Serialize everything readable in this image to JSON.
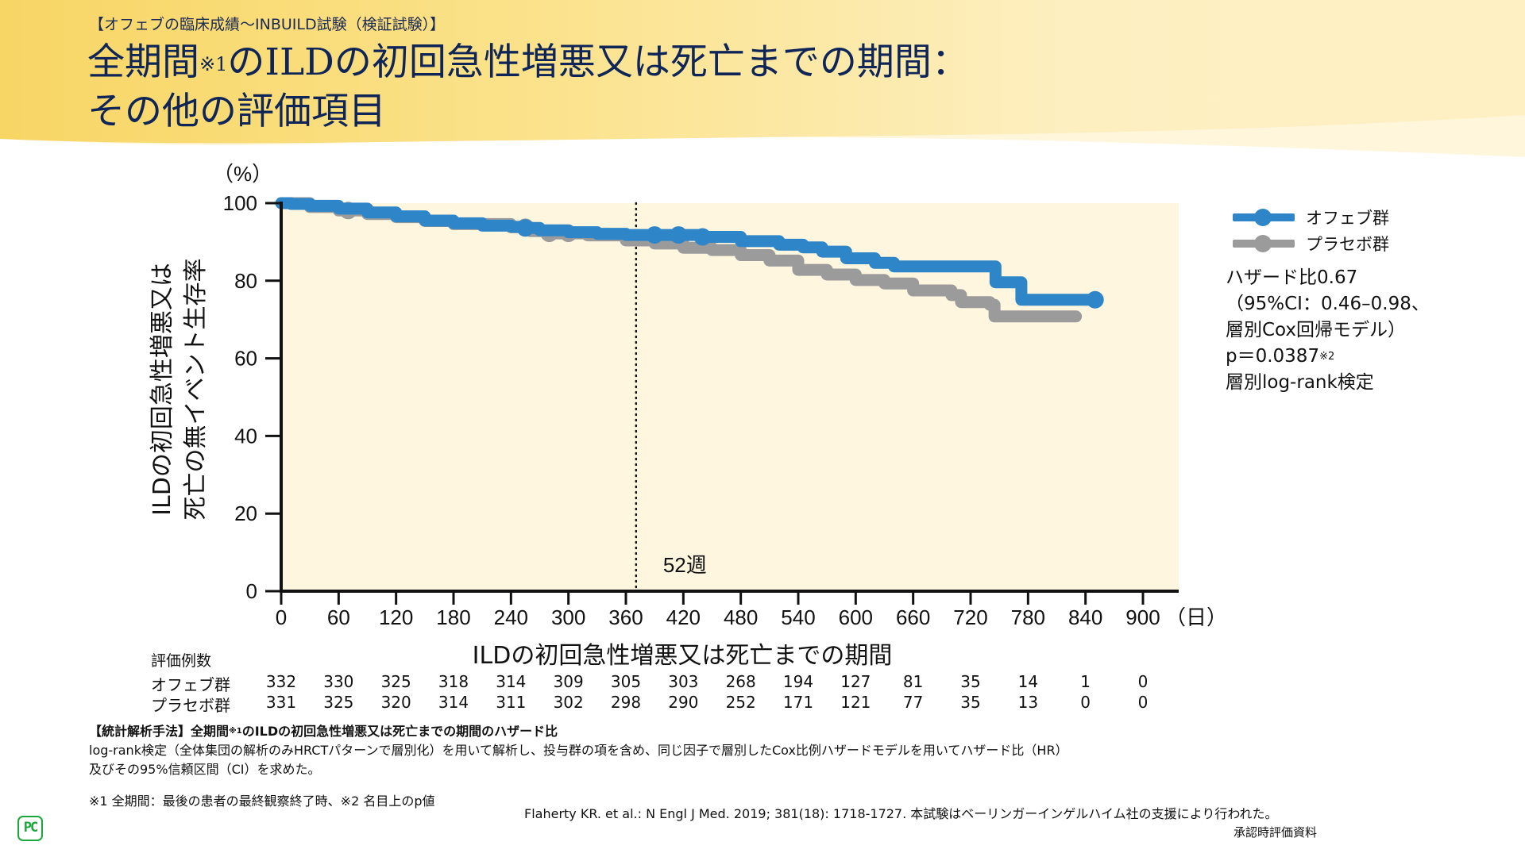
{
  "header": {
    "eyebrow": "【オフェブの臨床成績～INBUILD試験（検証試験）】",
    "title_line1_a": "全期間",
    "title_line1_sup": "※1",
    "title_line1_b": "のILDの初回急性増悪又は死亡までの期間：",
    "title_line2": "その他の評価項目"
  },
  "colors": {
    "ofev": "#2e86c9",
    "placebo": "#9b9b9b",
    "plot_bg": "#fff6e0",
    "title": "#0f2557",
    "logo": "#1aa83a"
  },
  "chart_data": {
    "type": "line",
    "title": "",
    "xlabel": "ILDの初回急性増悪又は死亡までの期間",
    "x_unit": "（日）",
    "ylabel_line1": "ILDの初回急性増悪又は",
    "ylabel_line2": "死亡の無イベント生存率",
    "y_unit": "（%）",
    "xlim": [
      0,
      900
    ],
    "ylim": [
      0,
      100
    ],
    "x_ticks": [
      0,
      60,
      120,
      180,
      240,
      300,
      360,
      420,
      480,
      540,
      600,
      660,
      720,
      780,
      840,
      900
    ],
    "y_ticks": [
      0,
      20,
      40,
      60,
      80,
      100
    ],
    "grid": false,
    "legend_position": "right",
    "reference_line": {
      "x": 364,
      "label": "52週",
      "style": "dotted"
    },
    "series": [
      {
        "name": "オフェブ群",
        "points": [
          [
            0,
            100
          ],
          [
            10,
            99.8
          ],
          [
            30,
            99.3
          ],
          [
            60,
            98.6
          ],
          [
            90,
            97.6
          ],
          [
            120,
            96.6
          ],
          [
            150,
            95.5
          ],
          [
            180,
            94.8
          ],
          [
            210,
            94.2
          ],
          [
            240,
            93.9
          ],
          [
            255,
            93.6
          ],
          [
            270,
            93.0
          ],
          [
            300,
            92.5
          ],
          [
            330,
            92.1
          ],
          [
            360,
            91.8
          ],
          [
            400,
            91.8
          ],
          [
            440,
            91.3
          ],
          [
            480,
            90.2
          ],
          [
            520,
            89.3
          ],
          [
            545,
            88.6
          ],
          [
            565,
            87.5
          ],
          [
            590,
            85.8
          ],
          [
            620,
            84.6
          ],
          [
            640,
            83.7
          ],
          [
            740,
            83.7
          ],
          [
            746,
            79.6
          ],
          [
            770,
            79.6
          ],
          [
            773,
            75.1
          ],
          [
            850,
            75.1
          ]
        ],
        "censor_marks": [
          255,
          390,
          415,
          440,
          850
        ]
      },
      {
        "name": "プラセボ群",
        "points": [
          [
            0,
            100
          ],
          [
            30,
            99
          ],
          [
            60,
            98.1
          ],
          [
            90,
            97.2
          ],
          [
            120,
            96.4
          ],
          [
            150,
            95.4
          ],
          [
            180,
            94.6
          ],
          [
            240,
            93.8
          ],
          [
            260,
            92.8
          ],
          [
            280,
            92.2
          ],
          [
            320,
            91.7
          ],
          [
            360,
            90.4
          ],
          [
            390,
            89.6
          ],
          [
            420,
            88.5
          ],
          [
            450,
            87.9
          ],
          [
            480,
            86.6
          ],
          [
            510,
            85.2
          ],
          [
            540,
            82.8
          ],
          [
            570,
            81.6
          ],
          [
            600,
            80.2
          ],
          [
            630,
            79.3
          ],
          [
            660,
            77.5
          ],
          [
            700,
            76.3
          ],
          [
            710,
            74.5
          ],
          [
            740,
            73.8
          ],
          [
            745,
            70.8
          ],
          [
            830,
            70.8
          ]
        ],
        "censor_marks": [
          70,
          255,
          280,
          300
        ]
      }
    ],
    "risk_table": {
      "title": "評価例数",
      "days": [
        0,
        60,
        120,
        180,
        240,
        300,
        360,
        420,
        480,
        540,
        600,
        660,
        720,
        780,
        840,
        900
      ],
      "rows": [
        {
          "label": "オフェブ群",
          "values": [
            332,
            330,
            325,
            318,
            314,
            309,
            305,
            303,
            268,
            194,
            127,
            81,
            35,
            14,
            1,
            0
          ]
        },
        {
          "label": "プラセボ群",
          "values": [
            331,
            325,
            320,
            314,
            311,
            302,
            298,
            290,
            252,
            171,
            121,
            77,
            35,
            13,
            0,
            0
          ]
        }
      ]
    }
  },
  "stats": {
    "line1": "ハザード比0.67",
    "line2": "（95%CI：0.46–0.98、",
    "line3": "層別Cox回帰モデル）",
    "line4": "p＝0.0387",
    "line4_sup": "※2",
    "line5": "層別log-rank検定"
  },
  "method": {
    "head_a": "【統計解析手法】全期間",
    "head_sup": "※1",
    "head_b": "のILDの初回急性増悪又は死亡までの期間のハザード比",
    "line2": "log-rank検定（全体集団の解析のみHRCTパターンで層別化）を用いて解析し、投与群の項を含め、同じ因子で層別したCox比例ハザードモデルを用いてハザード比（HR）",
    "line3": "及びその95%信頼区間（CI）を求めた。"
  },
  "footnote": "※1 全期間：最後の患者の最終観察終了時、※2 名目上のp値",
  "reference": "Flaherty KR. et al.: N Engl J Med. 2019; 381(18): 1718-1727. 本試験はベーリンガーインゲルハイム社の支援により行われた。",
  "approval": "承認時評価資料",
  "logo_text": "PC"
}
